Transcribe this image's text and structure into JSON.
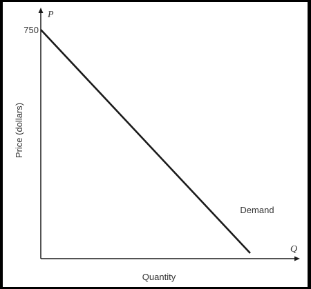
{
  "chart_data": {
    "type": "line",
    "title": "",
    "xlabel": "Quantity",
    "ylabel": "Price (dollars)",
    "x_axis_symbol": "Q",
    "y_axis_symbol": "P",
    "y_tick_labels": [
      "750"
    ],
    "series": [
      {
        "name": "Demand",
        "points": [
          {
            "q": 0,
            "p": 750
          },
          {
            "q": 1,
            "p": 18
          }
        ]
      }
    ],
    "ylim": [
      0,
      800
    ],
    "xlim": [
      0,
      1.22
    ],
    "grid": false,
    "colors": {
      "background": "#ffffff",
      "border": "#000000",
      "axis": "#1a1a1a",
      "line": "#1a1a1a",
      "text": "#333333"
    }
  }
}
